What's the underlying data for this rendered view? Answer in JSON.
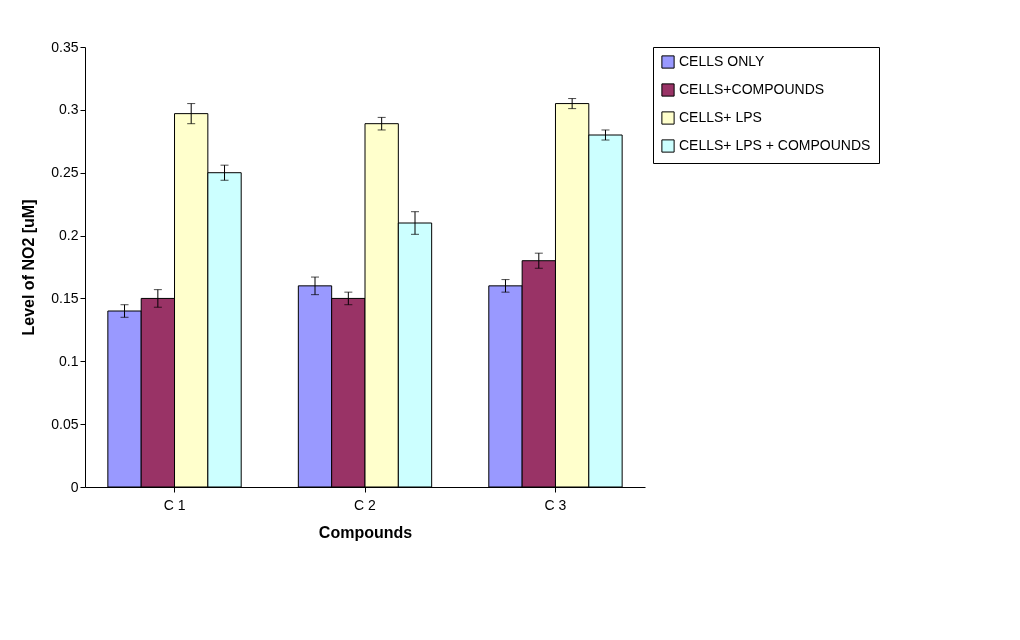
{
  "chart_data": {
    "type": "bar",
    "xlabel": "Compounds",
    "ylabel": "Level of NO2 [uM]",
    "categories": [
      "C 1",
      "C 2",
      "C 3"
    ],
    "series": [
      {
        "name": "CELLS ONLY",
        "color": "#9999ff",
        "values": [
          0.14,
          0.16,
          0.16
        ],
        "errors": [
          0.005,
          0.007,
          0.005
        ]
      },
      {
        "name": "CELLS+COMPOUNDS",
        "color": "#993366",
        "values": [
          0.15,
          0.15,
          0.18
        ],
        "errors": [
          0.007,
          0.005,
          0.006
        ]
      },
      {
        "name": "CELLS+ LPS",
        "color": "#ffffcc",
        "values": [
          0.297,
          0.289,
          0.305
        ],
        "errors": [
          0.008,
          0.005,
          0.004
        ]
      },
      {
        "name": "CELLS+ LPS + COMPOUNDS",
        "color": "#ccffff",
        "values": [
          0.25,
          0.21,
          0.28
        ],
        "errors": [
          0.006,
          0.009,
          0.004
        ]
      }
    ],
    "ylim": [
      0,
      0.35
    ],
    "yticks": [
      0,
      0.05,
      0.1,
      0.15,
      0.2,
      0.25,
      0.3,
      0.35
    ],
    "grid": false,
    "legend": "top right"
  }
}
